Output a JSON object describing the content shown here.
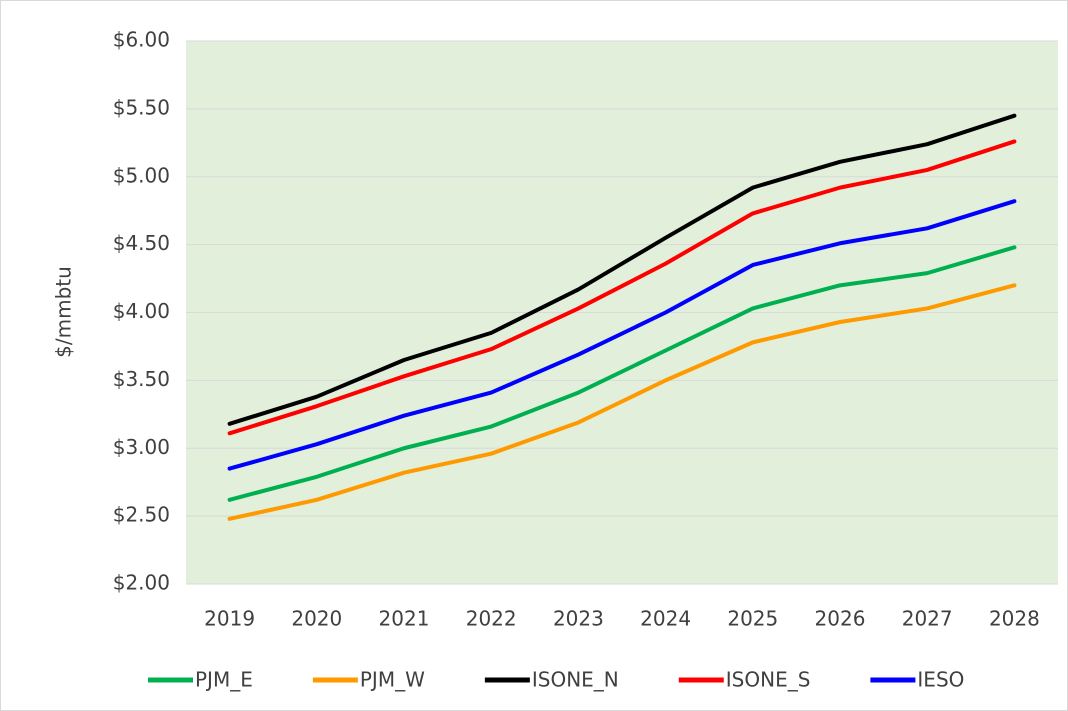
{
  "chart_data": {
    "type": "line",
    "y_label": "$/mmbtu",
    "categories": [
      "2019",
      "2020",
      "2021",
      "2022",
      "2023",
      "2024",
      "2025",
      "2026",
      "2027",
      "2028"
    ],
    "series": [
      {
        "name": "PJM_E",
        "color": "#00b050",
        "values": [
          2.62,
          2.79,
          3.0,
          3.16,
          3.41,
          3.72,
          4.03,
          4.2,
          4.29,
          4.48
        ]
      },
      {
        "name": "PJM_W",
        "color": "#ff9900",
        "values": [
          2.48,
          2.62,
          2.82,
          2.96,
          3.19,
          3.5,
          3.78,
          3.93,
          4.03,
          4.2
        ]
      },
      {
        "name": "ISONE_N",
        "color": "#000000",
        "values": [
          3.18,
          3.38,
          3.65,
          3.85,
          4.17,
          4.55,
          4.92,
          5.11,
          5.24,
          5.45
        ]
      },
      {
        "name": "ISONE_S",
        "color": "#ff0000",
        "values": [
          3.11,
          3.31,
          3.53,
          3.73,
          4.03,
          4.36,
          4.73,
          4.92,
          5.05,
          5.26
        ]
      },
      {
        "name": "IESO",
        "color": "#0000ff",
        "values": [
          2.85,
          3.03,
          3.24,
          3.41,
          3.69,
          4.0,
          4.35,
          4.51,
          4.62,
          4.82
        ]
      }
    ],
    "ylim": [
      2,
      6
    ],
    "yticks": [
      {
        "value": 2,
        "label": "$2.00"
      },
      {
        "value": 2.5,
        "label": "$2.50"
      },
      {
        "value": 3,
        "label": "$3.00"
      },
      {
        "value": 3.5,
        "label": "$3.50"
      },
      {
        "value": 4,
        "label": "$4.00"
      },
      {
        "value": 4.5,
        "label": "$4.50"
      },
      {
        "value": 5,
        "label": "$5.00"
      },
      {
        "value": 5.5,
        "label": "$5.50"
      },
      {
        "value": 6,
        "label": "$6.00"
      }
    ],
    "grid": true,
    "plot_background": "#e2efda",
    "legend": "bottom"
  }
}
